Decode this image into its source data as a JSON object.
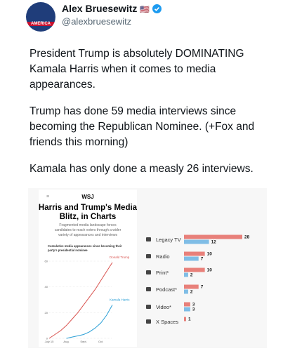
{
  "tweet": {
    "author": {
      "name": "Alex Bruesewitz",
      "handle": "@alexbruesewitz",
      "avatar_text": "AMERICA"
    },
    "paragraphs": [
      "President Trump is absolutely DOMINATING Kamala Harris when it comes to media appearances.",
      "Trump has done 59 media interviews since becoming the Republican Nominee. (+Fox and friends this morning)",
      "Kamala has only done a measly 26 interviews."
    ]
  },
  "article": {
    "source": "WSJ",
    "title_lines": [
      "Harris and Trump's Media",
      "Blitz, in Charts"
    ],
    "subtitle_lines": [
      "Fragmented media landscape forces",
      "candidates to reach voters through a wider",
      "variety of appearances and interviews"
    ]
  },
  "chart_data": [
    {
      "type": "line",
      "title_lines": [
        "Cumulative media appearances since becoming their",
        "party's presidential nominee"
      ],
      "categories": [
        "July 15",
        null,
        null,
        "Aug.",
        null,
        null,
        "Sept.",
        null,
        null,
        "Oct.",
        null,
        null
      ],
      "series": [
        {
          "name": "Donald Trump",
          "color": "#d9534f",
          "values": [
            0,
            3,
            6,
            10,
            15,
            20,
            26,
            32,
            38,
            45,
            52,
            59
          ]
        },
        {
          "name": "Kamala Harris",
          "color": "#2a9fd6",
          "values": [
            null,
            null,
            null,
            0,
            1,
            2,
            3,
            5,
            8,
            12,
            18,
            26
          ]
        }
      ],
      "ylim": [
        0,
        60
      ],
      "yticks": [
        0,
        20,
        40,
        60
      ]
    },
    {
      "type": "hbar",
      "categories": [
        "Legacy TV",
        "Radio",
        "Print*",
        "Podcast*",
        "Video*",
        "X Spaces"
      ],
      "series": [
        {
          "name": "Trump",
          "color": "#e8807a",
          "values": [
            28,
            10,
            10,
            7,
            3,
            1
          ]
        },
        {
          "name": "Harris",
          "color": "#7fbde6",
          "values": [
            12,
            7,
            2,
            2,
            3,
            null
          ]
        }
      ],
      "xlim": [
        0,
        28
      ]
    }
  ]
}
